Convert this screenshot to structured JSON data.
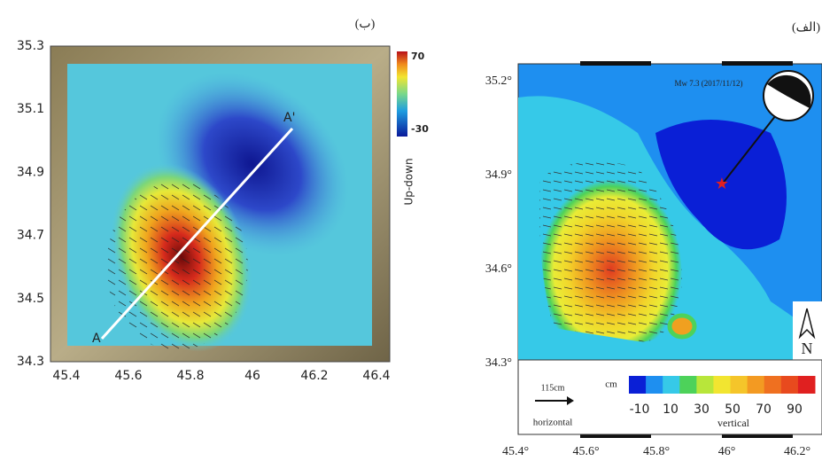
{
  "panel_b": {
    "label": "(ب)",
    "x_ticks": [
      "45.4",
      "45.6",
      "45.8",
      "46",
      "46.2",
      "46.4"
    ],
    "y_ticks": [
      "35.3",
      "35.1",
      "34.9",
      "34.7",
      "34.5",
      "34.3"
    ],
    "profile_start": "A",
    "profile_end": "A'",
    "colorbar": {
      "title": "Up-down",
      "max": "70",
      "min": "-30"
    }
  },
  "panel_a": {
    "label": "(الف)",
    "x_ticks": [
      "45.4°",
      "45.6°",
      "45.8°",
      "46°",
      "46.2°"
    ],
    "y_ticks": [
      "35.2°",
      "34.9°",
      "34.6°",
      "34.3°"
    ],
    "event": "Mw 7.3 (2017/11/12)",
    "scale_arrow": "115cm",
    "scale_label": "horizontal",
    "colorbar_unit": "cm",
    "colorbar_ticks": [
      "-10",
      "10",
      "30",
      "50",
      "70",
      "90"
    ],
    "colorbar_label": "vertical",
    "north": "N"
  }
}
